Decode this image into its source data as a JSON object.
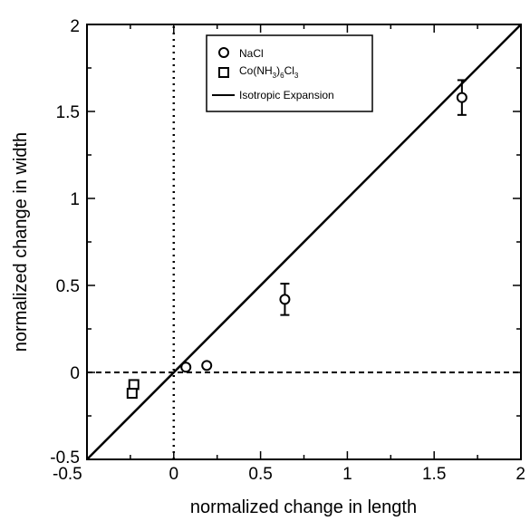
{
  "chart_data": {
    "type": "scatter",
    "title": "",
    "xlabel": "normalized change in length",
    "ylabel": "normalized change in width",
    "xlim": [
      -0.5,
      2
    ],
    "ylim": [
      -0.5,
      2
    ],
    "x_ticks": [
      "-0.5",
      "0",
      "0.5",
      "1",
      "1.5",
      "2"
    ],
    "y_ticks": [
      "-0.5",
      "0",
      "0.5",
      "1",
      "1.5",
      "2"
    ],
    "x_tick_values": [
      -0.5,
      0,
      0.5,
      1,
      1.5,
      2
    ],
    "y_tick_values": [
      -0.5,
      0,
      0.5,
      1,
      1.5,
      2
    ],
    "grid": false,
    "legend_position": "top-center",
    "series": [
      {
        "name": "NaCl",
        "marker": "circle",
        "points": [
          {
            "x": 0.07,
            "y": 0.03,
            "err": 0
          },
          {
            "x": 0.19,
            "y": 0.04,
            "err": 0
          },
          {
            "x": 0.64,
            "y": 0.42,
            "err": 0.09
          },
          {
            "x": 1.66,
            "y": 1.58,
            "err": 0.1
          }
        ]
      },
      {
        "name": "Co(NH3)6Cl3",
        "marker": "square",
        "points": [
          {
            "x": -0.23,
            "y": -0.07,
            "err": 0
          },
          {
            "x": -0.24,
            "y": -0.12,
            "err": 0
          }
        ]
      }
    ],
    "lines": [
      {
        "name": "Isotropic Expansion",
        "style": "solid",
        "from": [
          -0.5,
          -0.5
        ],
        "to": [
          2,
          2
        ]
      },
      {
        "style": "dashed",
        "from": [
          -0.5,
          0
        ],
        "to": [
          2,
          0
        ]
      },
      {
        "style": "dotted",
        "from": [
          0,
          -0.5
        ],
        "to": [
          0,
          2
        ]
      }
    ],
    "legend": {
      "nacl": "NaCl",
      "co_main": "Co(NH",
      "co_sub1": "3",
      "co_mid": ")",
      "co_sub2": "6",
      "co_end": "Cl",
      "co_sub3": "3",
      "iso": "Isotropic Expansion"
    }
  }
}
